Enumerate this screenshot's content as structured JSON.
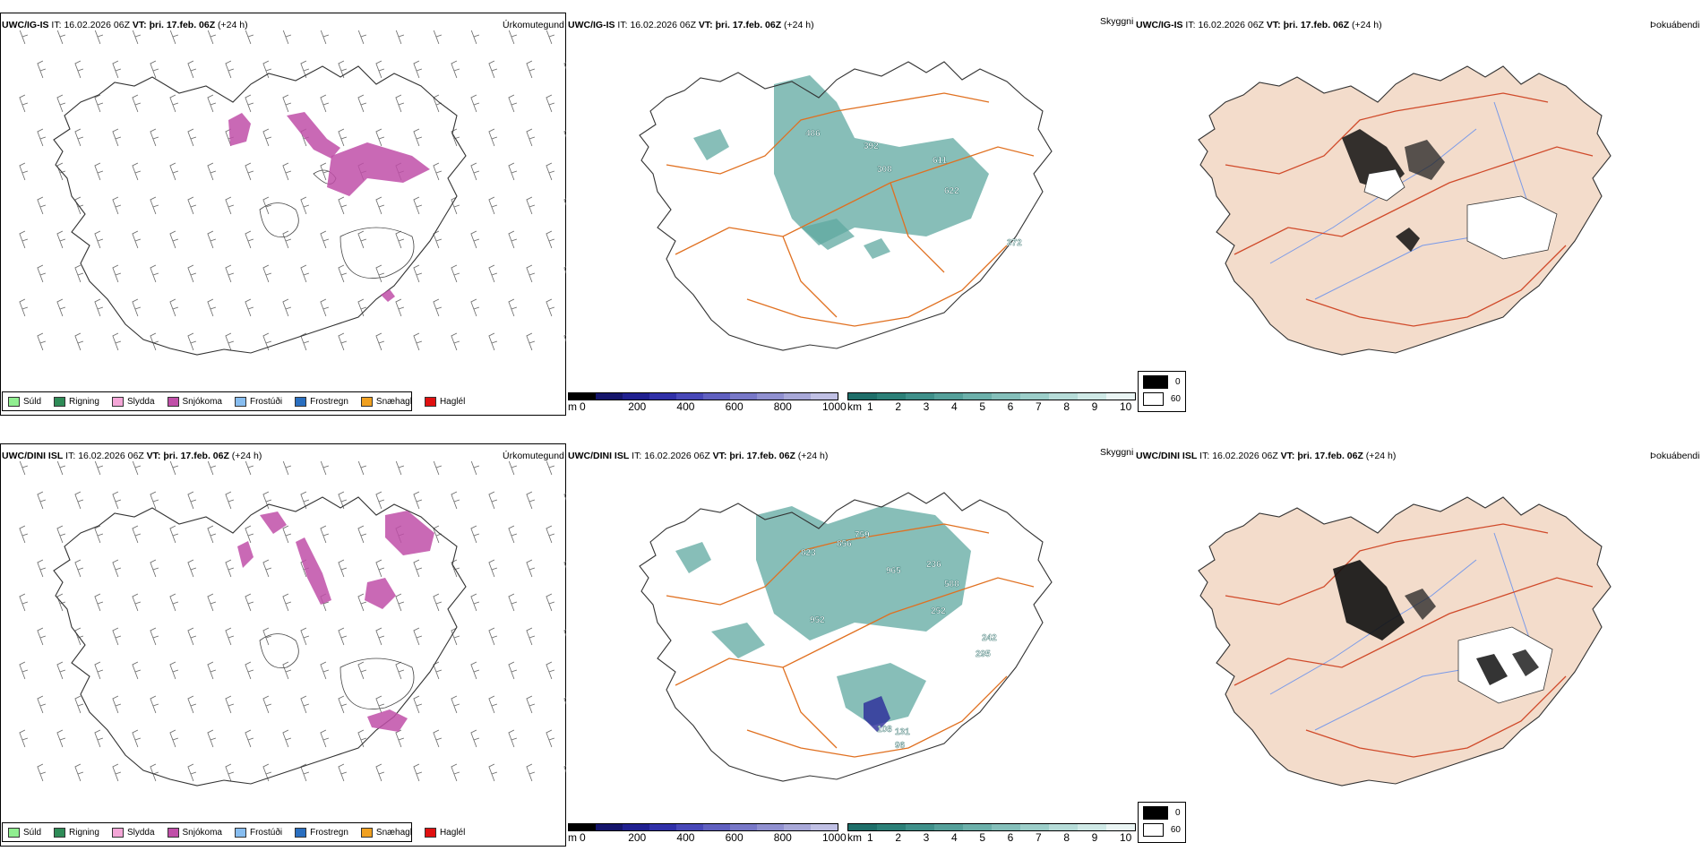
{
  "rows": [
    {
      "model": "UWC/IG-IS",
      "it_label": "IT:",
      "it_value": "16.02.2026 06Z",
      "vt_label": "VT:",
      "vt_value": "þri. 17.feb. 06Z",
      "lead": "(+24 h)",
      "panels": {
        "precip": {
          "name": "Úrkomutegund"
        },
        "cloud": {
          "name": "Skyggni",
          "labels": [
            "486",
            "392",
            "308",
            "611",
            "622",
            "372"
          ]
        },
        "fog": {
          "name": "Þokuábendi"
        }
      }
    },
    {
      "model": "UWC/DINI ISL",
      "it_label": "IT:",
      "it_value": "16.02.2026 06Z",
      "vt_label": "VT:",
      "vt_value": "þri. 17.feb. 06Z",
      "lead": "(+24 h)",
      "panels": {
        "precip": {
          "name": "Úrkomutegund"
        },
        "cloud": {
          "name": "Skyggni",
          "labels": [
            "823",
            "856",
            "759",
            "965",
            "236",
            "588",
            "252",
            "952",
            "242",
            "295",
            "108",
            "131",
            "96"
          ]
        },
        "fog": {
          "name": "Þokuábendi"
        }
      }
    }
  ],
  "precip_legend": [
    {
      "label": "Súld",
      "color": "#90ee90"
    },
    {
      "label": "Rigning",
      "color": "#2e8b57"
    },
    {
      "label": "Slydda",
      "color": "#f4a6d7"
    },
    {
      "label": "Snjókoma",
      "color": "#c04fa8"
    },
    {
      "label": "Frostúði",
      "color": "#87bdf0"
    },
    {
      "label": "Frostregn",
      "color": "#2a6fc0"
    },
    {
      "label": "Snæhagl",
      "color": "#f0a020"
    },
    {
      "label": "Haglél",
      "color": "#e01010"
    }
  ],
  "cloudbase_scale": {
    "unit": "m",
    "ticks": [
      "0",
      "200",
      "400",
      "600",
      "800",
      "1000"
    ],
    "colors": [
      "#000000",
      "#15156b",
      "#202090",
      "#3030a8",
      "#4848b8",
      "#6060c0",
      "#7878c8",
      "#9090d0",
      "#a8a8d8",
      "#c0c0e4"
    ]
  },
  "visibility_scale": {
    "unit": "km",
    "ticks": [
      "1",
      "2",
      "3",
      "4",
      "5",
      "6",
      "7",
      "8",
      "9",
      "10"
    ],
    "colors": [
      "#1f6f6a",
      "#2c8078",
      "#3f908a",
      "#55a09a",
      "#6cb0aa",
      "#84bfba",
      "#9ccec9",
      "#b6dcd8",
      "#cfe9e6",
      "#eaf5f4"
    ]
  },
  "fog_legend": [
    {
      "label": "0",
      "color": "#000000"
    },
    {
      "label": "60",
      "color": "#ffffff"
    }
  ],
  "colors": {
    "snow": "#c04fa8",
    "visibility": "#5fa8a0",
    "roads": "#e07020",
    "fog_land": "#f3dccb",
    "fog_roads": "#d04a2a",
    "rivers": "#7a9ae8"
  }
}
